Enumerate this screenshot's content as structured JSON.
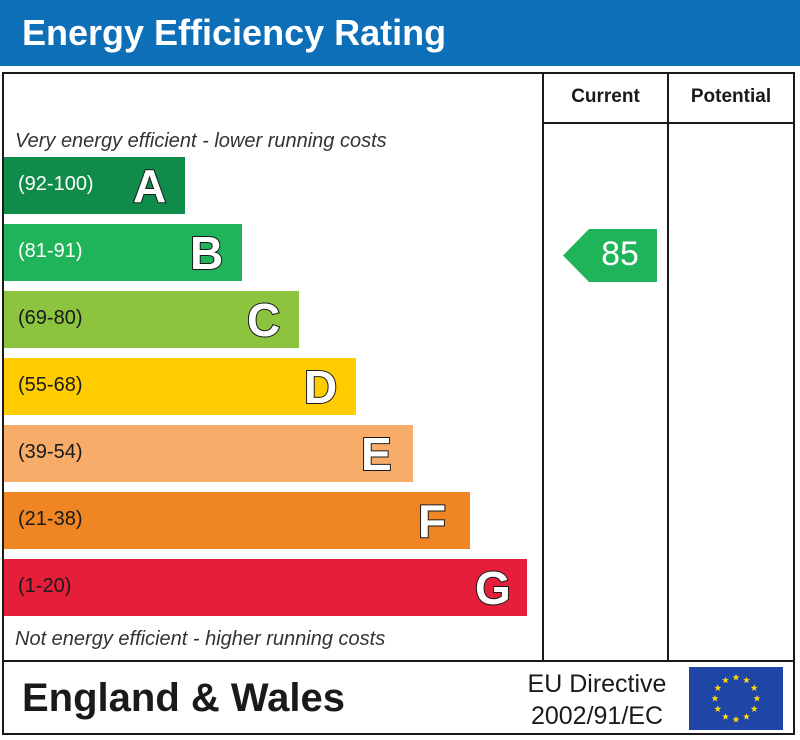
{
  "title": "Energy Efficiency Rating",
  "columns": {
    "current": "Current",
    "potential": "Potential"
  },
  "notes": {
    "top": "Very energy efficient - lower running costs",
    "bottom": "Not energy efficient - higher running costs"
  },
  "chart_data": {
    "type": "bar",
    "title": "Energy Efficiency Rating",
    "categories": [
      "A",
      "B",
      "C",
      "D",
      "E",
      "F",
      "G"
    ],
    "bands": [
      {
        "letter": "A",
        "range": "(92-100)",
        "color": "#0f8c4a"
      },
      {
        "letter": "B",
        "range": "(81-91)",
        "color": "#1fb35a"
      },
      {
        "letter": "C",
        "range": "(69-80)",
        "color": "#8cc43f"
      },
      {
        "letter": "D",
        "range": "(55-68)",
        "color": "#ffcc00"
      },
      {
        "letter": "E",
        "range": "(39-54)",
        "color": "#f7ac6a"
      },
      {
        "letter": "F",
        "range": "(21-38)",
        "color": "#f08523"
      },
      {
        "letter": "G",
        "range": "(1-20)",
        "color": "#e51e3a"
      }
    ],
    "current": {
      "value": "85",
      "band": "B",
      "color": "#1fb35a"
    },
    "potential": null
  },
  "footer": {
    "region": "England & Wales",
    "directive_line1": "EU Directive",
    "directive_line2": "2002/91/EC"
  },
  "icons": {
    "flag": "eu-flag-icon"
  },
  "colors": {
    "header": "#0d6fb8",
    "flag_bg": "#1f46a6",
    "flag_stars": "#ffdd00"
  }
}
